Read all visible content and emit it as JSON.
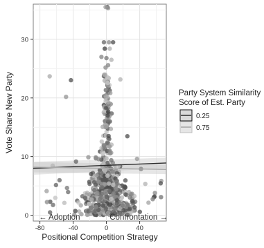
{
  "chart_data": {
    "type": "scatter",
    "xlabel": "Positional Competition Strategy",
    "ylabel": "Vote Share New Party",
    "xlim": [
      -88,
      72
    ],
    "ylim": [
      -1,
      36
    ],
    "xticks": [
      -80,
      -40,
      0,
      40
    ],
    "yticks": [
      0,
      10,
      20,
      30
    ],
    "grid": true,
    "annotations": {
      "left": "← Adoption",
      "right": "Confrontation →"
    },
    "legend": {
      "placement": "right",
      "title_lines": [
        "Party System Similarity",
        "Score of Est. Party"
      ],
      "entries": [
        "0.25",
        "0.75"
      ]
    },
    "series": [
      {
        "name": "0.25",
        "color": "#2a2a2a",
        "fit_line": {
          "x": [
            -88,
            72
          ],
          "y": [
            8.0,
            8.9
          ]
        },
        "ci_band": {
          "x": [
            -88,
            72
          ],
          "lower": [
            6.9,
            8.0
          ],
          "upper": [
            9.1,
            9.8
          ]
        }
      },
      {
        "name": "0.75",
        "color": "#a8a8a8",
        "fit_line": {
          "x": [
            -88,
            72
          ],
          "y": [
            8.2,
            7.8
          ]
        },
        "ci_band": {
          "x": [
            -88,
            72
          ],
          "lower": [
            7.3,
            7.0
          ],
          "upper": [
            9.1,
            8.6
          ]
        }
      }
    ],
    "points_note": "Several hundred semi-transparent grey points, densest near x = 0 and y between 0 and 18; isolated points near y = 29.5 and y = 35.5 at x ≈ 0."
  }
}
